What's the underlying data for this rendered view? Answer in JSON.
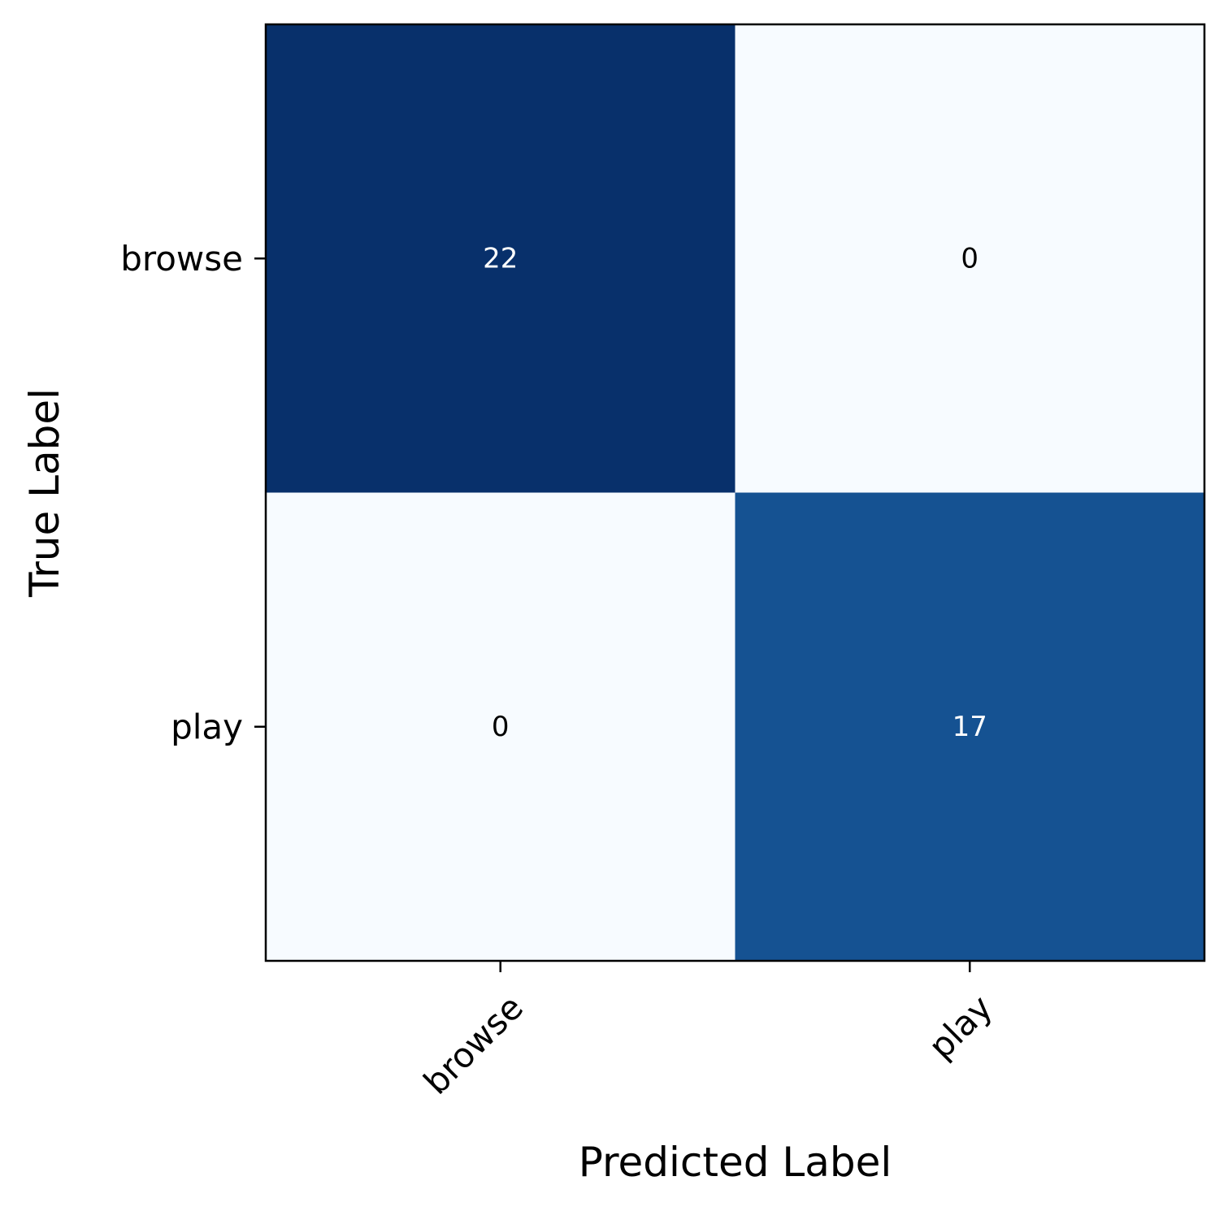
{
  "chart_data": {
    "type": "heatmap",
    "title": "",
    "xlabel": "Predicted Label",
    "ylabel": "True Label",
    "x_categories": [
      "browse",
      "play"
    ],
    "y_categories": [
      "browse",
      "play"
    ],
    "values": [
      [
        22,
        0
      ],
      [
        0,
        17
      ]
    ],
    "colormap": "Blues",
    "color_range": [
      0,
      22
    ],
    "grid": false,
    "legend": "none"
  },
  "colors": {
    "low": "#f7fbff",
    "mid": "#1f6bb0",
    "high": "#08306b",
    "text_dark": "#000000",
    "text_light": "#ffffff"
  }
}
